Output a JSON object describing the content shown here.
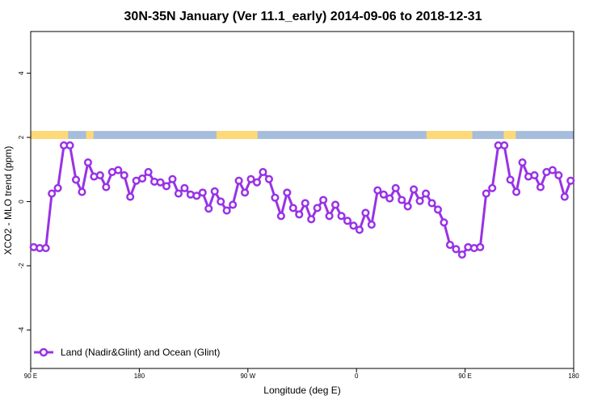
{
  "chart_data": {
    "type": "line",
    "title": "30N-35N January (Ver 11.1_early)   2014-09-06 to 2018-12-31",
    "xlabel": "Longitude (deg E)",
    "ylabel": "XCO2 - MLO trend (ppm)",
    "xlim": [
      90,
      540
    ],
    "ylim": [
      -5.2,
      5.3
    ],
    "x_ticks": [
      {
        "value": 90,
        "label": "90 E"
      },
      {
        "value": 180,
        "label": "180"
      },
      {
        "value": 270,
        "label": "90 W"
      },
      {
        "value": 360,
        "label": "0"
      },
      {
        "value": 450,
        "label": "90 E"
      },
      {
        "value": 540,
        "label": "180"
      }
    ],
    "y_ticks": [
      {
        "value": -4,
        "label": "-4"
      },
      {
        "value": -2,
        "label": "-2"
      },
      {
        "value": 0,
        "label": "0"
      },
      {
        "value": 2,
        "label": "2"
      },
      {
        "value": 4,
        "label": "4"
      }
    ],
    "series": [
      {
        "name": "Land (Nadir&Glint) and Ocean (Glint)",
        "color": "#9932e6",
        "x": [
          92.5,
          97.5,
          102.5,
          107.5,
          112.5,
          117.5,
          122.5,
          127.5,
          132.5,
          137.5,
          142.5,
          147.5,
          152.5,
          157.5,
          162.5,
          167.5,
          172.5,
          177.5,
          182.5,
          187.5,
          192.5,
          197.5,
          202.5,
          207.5,
          212.5,
          217.5,
          222.5,
          227.5,
          232.5,
          237.5,
          242.5,
          247.5,
          252.5,
          257.5,
          262.5,
          267.5,
          272.5,
          277.5,
          282.5,
          287.5,
          292.5,
          297.5,
          302.5,
          307.5,
          312.5,
          317.5,
          322.5,
          327.5,
          332.5,
          337.5,
          342.5,
          347.5,
          352.5,
          357.5,
          362.5,
          367.5,
          372.5,
          377.5,
          382.5,
          387.5,
          392.5,
          397.5,
          402.5,
          407.5,
          412.5,
          417.5,
          422.5,
          427.5,
          432.5,
          437.5,
          442.5,
          447.5,
          452.5,
          457.5,
          462.5,
          467.5,
          472.5,
          477.5,
          482.5,
          487.5,
          492.5,
          497.5,
          502.5,
          507.5,
          512.5,
          517.5,
          522.5,
          527.5,
          532.5,
          537.5
        ],
        "values": [
          -1.42,
          -1.45,
          -1.45,
          0.25,
          0.42,
          1.75,
          1.75,
          0.68,
          0.3,
          1.22,
          0.78,
          0.82,
          0.45,
          0.92,
          0.98,
          0.82,
          0.15,
          0.65,
          0.72,
          0.92,
          0.62,
          0.6,
          0.48,
          0.7,
          0.25,
          0.42,
          0.22,
          0.18,
          0.28,
          -0.22,
          0.32,
          0.0,
          -0.28,
          -0.1,
          0.65,
          0.28,
          0.7,
          0.6,
          0.92,
          0.7,
          0.12,
          -0.45,
          0.28,
          -0.2,
          -0.4,
          -0.05,
          -0.55,
          -0.2,
          0.05,
          -0.45,
          -0.1,
          -0.45,
          -0.6,
          -0.75,
          -0.88,
          -0.35,
          -0.72,
          0.35,
          0.22,
          0.1,
          0.42,
          0.05,
          -0.15,
          0.38,
          0.02,
          0.25,
          -0.05,
          -0.25,
          -0.65,
          -1.35,
          -1.48,
          -1.65,
          -1.42,
          -1.45,
          -1.42,
          0.25,
          0.42,
          1.75,
          1.75,
          0.68,
          0.3,
          1.22,
          0.78,
          0.82,
          0.45,
          0.92,
          0.98,
          0.82,
          0.15,
          0.65
        ]
      }
    ],
    "surface_band": {
      "y_range": [
        1.95,
        2.2
      ],
      "land_color": "#ffd977",
      "ocean_color": "#a6bddb",
      "land_segments": [
        [
          90,
          121
        ],
        [
          136,
          142
        ],
        [
          244,
          278
        ],
        [
          418,
          456
        ],
        [
          482,
          492
        ]
      ]
    },
    "legend_position": "bottom-left",
    "grid": false
  }
}
